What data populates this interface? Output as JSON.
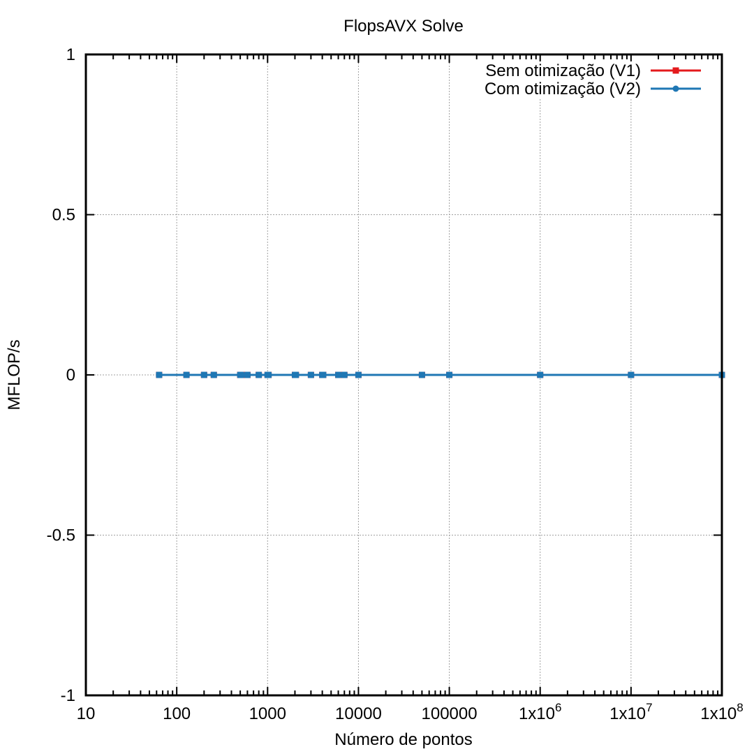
{
  "chart_data": {
    "type": "line",
    "title": "FlopsAVX Solve",
    "xlabel": "Número de pontos",
    "ylabel": "MFLOP/s",
    "x_scale": "log10",
    "xlim": [
      10,
      100000000
    ],
    "ylim": [
      -1,
      1
    ],
    "grid": true,
    "legend_position": "top-right",
    "x_ticks": [
      {
        "value": 10,
        "label": "10",
        "base": "",
        "exp": ""
      },
      {
        "value": 100,
        "label": "100",
        "base": "",
        "exp": ""
      },
      {
        "value": 1000,
        "label": "1000",
        "base": "",
        "exp": ""
      },
      {
        "value": 10000,
        "label": "10000",
        "base": "",
        "exp": ""
      },
      {
        "value": 100000,
        "label": "100000",
        "base": "",
        "exp": ""
      },
      {
        "value": 1000000,
        "label": "",
        "base": "1x10",
        "exp": "6"
      },
      {
        "value": 10000000,
        "label": "",
        "base": "1x10",
        "exp": "7"
      },
      {
        "value": 100000000,
        "label": "",
        "base": "1x10",
        "exp": "8"
      }
    ],
    "y_ticks": [
      {
        "value": 1,
        "label": "1"
      },
      {
        "value": 0.5,
        "label": "0.5"
      },
      {
        "value": 0,
        "label": "0"
      },
      {
        "value": -0.5,
        "label": "-0.5"
      },
      {
        "value": -1,
        "label": "-1"
      }
    ],
    "series": [
      {
        "name": "Sem otimização (V1)",
        "color": "#e41a1c",
        "marker": "square",
        "x": [
          64,
          128,
          200,
          256,
          500,
          512,
          600,
          800,
          1000,
          1024,
          2000,
          2048,
          3000,
          4000,
          4096,
          6000,
          7000,
          10000,
          50000,
          100000,
          1000000,
          10000000,
          100000000
        ],
        "y": [
          0,
          0,
          0,
          0,
          0,
          0,
          0,
          0,
          0,
          0,
          0,
          0,
          0,
          0,
          0,
          0,
          0,
          0,
          0,
          0,
          0,
          0,
          0
        ]
      },
      {
        "name": "Com otimização (V2)",
        "color": "#1f77b4",
        "marker": "circle",
        "x": [
          64,
          128,
          200,
          256,
          500,
          512,
          600,
          800,
          1000,
          1024,
          2000,
          2048,
          3000,
          4000,
          4096,
          6000,
          7000,
          10000,
          50000,
          100000,
          1000000,
          10000000,
          100000000
        ],
        "y": [
          0,
          0,
          0,
          0,
          0,
          0,
          0,
          0,
          0,
          0,
          0,
          0,
          0,
          0,
          0,
          0,
          0,
          0,
          0,
          0,
          0,
          0,
          0
        ]
      }
    ]
  }
}
